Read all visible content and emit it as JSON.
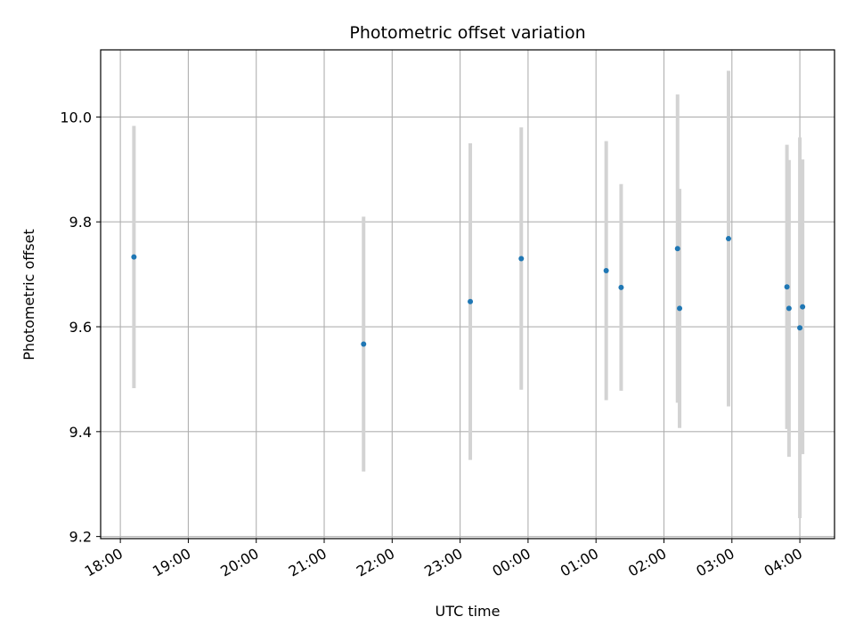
{
  "chart_data": {
    "type": "scatter",
    "title": "Photometric offset variation",
    "xlabel": "UTC time",
    "ylabel": "Photometric offset",
    "x_unit": "hours",
    "x_ticks": [
      {
        "value": 0,
        "label": "18:00"
      },
      {
        "value": 1,
        "label": "19:00"
      },
      {
        "value": 2,
        "label": "20:00"
      },
      {
        "value": 3,
        "label": "21:00"
      },
      {
        "value": 4,
        "label": "22:00"
      },
      {
        "value": 5,
        "label": "23:00"
      },
      {
        "value": 6,
        "label": "00:00"
      },
      {
        "value": 7,
        "label": "01:00"
      },
      {
        "value": 8,
        "label": "02:00"
      },
      {
        "value": 9,
        "label": "03:00"
      },
      {
        "value": 10,
        "label": "04:00"
      }
    ],
    "y_ticks": [
      {
        "value": 9.2,
        "label": "9.2"
      },
      {
        "value": 9.4,
        "label": "9.4"
      },
      {
        "value": 9.6,
        "label": "9.6"
      },
      {
        "value": 9.8,
        "label": "9.8"
      },
      {
        "value": 10.0,
        "label": "10.0"
      }
    ],
    "xlim": [
      -0.29,
      10.51
    ],
    "ylim": [
      9.196,
      10.128
    ],
    "grid": true,
    "marker_color": "#1f77b4",
    "errorbar_color": "#d3d3d3",
    "points": [
      {
        "x": 0.2,
        "y": 9.733,
        "err": 0.25
      },
      {
        "x": 3.58,
        "y": 9.567,
        "err": 0.243
      },
      {
        "x": 5.15,
        "y": 9.648,
        "err": 0.302
      },
      {
        "x": 5.9,
        "y": 9.73,
        "err": 0.25
      },
      {
        "x": 7.15,
        "y": 9.707,
        "err": 0.247
      },
      {
        "x": 7.37,
        "y": 9.675,
        "err": 0.197
      },
      {
        "x": 8.2,
        "y": 9.749,
        "err": 0.294
      },
      {
        "x": 8.23,
        "y": 9.635,
        "err": 0.228
      },
      {
        "x": 8.95,
        "y": 9.768,
        "err": 0.32
      },
      {
        "x": 9.81,
        "y": 9.676,
        "err": 0.271
      },
      {
        "x": 9.84,
        "y": 9.635,
        "err": 0.283
      },
      {
        "x": 10.0,
        "y": 9.598,
        "err": 0.363
      },
      {
        "x": 10.04,
        "y": 9.638,
        "err": 0.281
      }
    ]
  }
}
